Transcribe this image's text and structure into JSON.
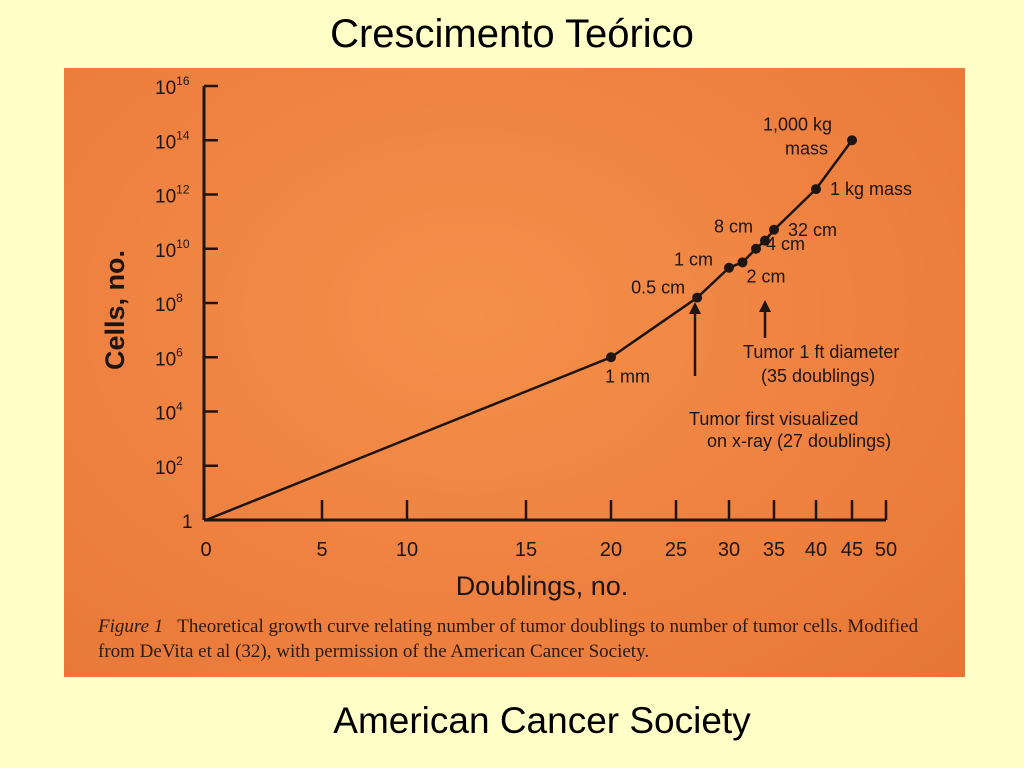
{
  "slide": {
    "title": "Crescimento Teórico",
    "footer": "American Cancer Society"
  },
  "figure": {
    "caption_label": "Figure 1",
    "caption_text": "Theoretical growth curve relating number of tumor doublings to number of tumor cells. Modified from DeVita et al (32), with permission of the American Cancer Society."
  },
  "colors": {
    "slide_background": "#ffffc8",
    "photo_background": "#ee8040",
    "ink": "#1e1410"
  },
  "chart_data": {
    "type": "line",
    "title": "",
    "xlabel": "Doublings, no.",
    "ylabel": "Cells, no.",
    "y_scale": "log10",
    "xlim": [
      0,
      50
    ],
    "ylim_exponent": [
      0,
      16
    ],
    "x_ticks": [
      0,
      5,
      10,
      15,
      20,
      25,
      30,
      35,
      40,
      45,
      50
    ],
    "y_ticks": [
      {
        "base": "1",
        "exp": ""
      },
      {
        "base": "10",
        "exp": "2"
      },
      {
        "base": "10",
        "exp": "4"
      },
      {
        "base": "10",
        "exp": "6"
      },
      {
        "base": "10",
        "exp": "8"
      },
      {
        "base": "10",
        "exp": "10"
      },
      {
        "base": "10",
        "exp": "12"
      },
      {
        "base": "10",
        "exp": "14"
      },
      {
        "base": "10",
        "exp": "16"
      }
    ],
    "series": [
      {
        "points": [
          {
            "x": 0,
            "log_y": 0,
            "label": ""
          },
          {
            "x": 20,
            "log_y": 6,
            "label": "1 mm"
          },
          {
            "x": 27,
            "log_y": 8.2,
            "label": "0.5 cm"
          },
          {
            "x": 30,
            "log_y": 9.3,
            "label": "1 cm"
          },
          {
            "x": 31.5,
            "log_y": 9.5,
            "label": "2 cm"
          },
          {
            "x": 33,
            "log_y": 10.0,
            "label": "4 cm"
          },
          {
            "x": 34,
            "log_y": 10.3,
            "label": "8 cm"
          },
          {
            "x": 35,
            "log_y": 10.7,
            "label": "32 cm"
          },
          {
            "x": 40,
            "log_y": 12.2,
            "label": "1 kg mass"
          },
          {
            "x": 45,
            "log_y": 14,
            "label": "1,000 kg mass"
          }
        ]
      }
    ],
    "annotations": [
      {
        "text": "Tumor first visualized on x-ray (27 doublings)",
        "x": 27
      },
      {
        "text": "Tumor 1 ft diameter (35 doublings)",
        "x": 35
      }
    ]
  }
}
